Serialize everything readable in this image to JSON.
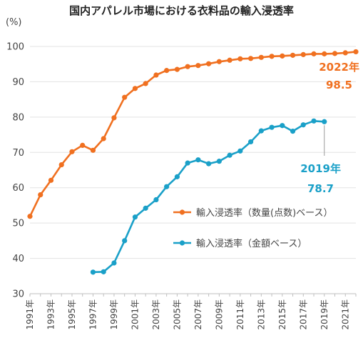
{
  "chart_data": {
    "type": "line",
    "title": "国内アパレル市場における衣料品の輸入浸透率",
    "ylabel": "(%)",
    "xlabel": "",
    "ylim": [
      30,
      100
    ],
    "yticks": [
      30,
      40,
      50,
      60,
      70,
      80,
      90,
      100
    ],
    "xlim": [
      1991,
      2022
    ],
    "xtick_labels": [
      "1991年",
      "1993年",
      "1995年",
      "1997年",
      "1999年",
      "2001年",
      "2003年",
      "2005年",
      "2007年",
      "2009年",
      "2011年",
      "2013年",
      "2015年",
      "2017年",
      "2019年",
      "2021年"
    ],
    "grid": "horizontal",
    "legend_position": "center-right",
    "series": [
      {
        "name": "輸入浸透率（数量(点数)ベース）",
        "color": "#F07020",
        "points": [
          [
            1991,
            51.9
          ],
          [
            1992,
            58.0
          ],
          [
            1993,
            62.1
          ],
          [
            1994,
            66.5
          ],
          [
            1995,
            70.2
          ],
          [
            1996,
            72.0
          ],
          [
            1997,
            70.6
          ],
          [
            1998,
            73.9
          ],
          [
            1999,
            79.8
          ],
          [
            2000,
            85.6
          ],
          [
            2001,
            88.1
          ],
          [
            2002,
            89.5
          ],
          [
            2003,
            91.9
          ],
          [
            2004,
            93.2
          ],
          [
            2005,
            93.5
          ],
          [
            2006,
            94.3
          ],
          [
            2007,
            94.6
          ],
          [
            2008,
            95.1
          ],
          [
            2009,
            95.7
          ],
          [
            2010,
            96.1
          ],
          [
            2011,
            96.5
          ],
          [
            2012,
            96.6
          ],
          [
            2013,
            96.9
          ],
          [
            2014,
            97.2
          ],
          [
            2015,
            97.3
          ],
          [
            2016,
            97.5
          ],
          [
            2017,
            97.7
          ],
          [
            2018,
            97.9
          ],
          [
            2019,
            97.9
          ],
          [
            2020,
            98.0
          ],
          [
            2021,
            98.2
          ],
          [
            2022,
            98.5
          ]
        ]
      },
      {
        "name": "輸入浸透率（金額ベース）",
        "color": "#1AA0C8",
        "points": [
          [
            1997,
            36.1
          ],
          [
            1998,
            36.2
          ],
          [
            1999,
            38.7
          ],
          [
            2000,
            45.0
          ],
          [
            2001,
            51.7
          ],
          [
            2002,
            54.2
          ],
          [
            2003,
            56.6
          ],
          [
            2004,
            60.3
          ],
          [
            2005,
            63.1
          ],
          [
            2006,
            67.0
          ],
          [
            2007,
            67.9
          ],
          [
            2008,
            66.8
          ],
          [
            2009,
            67.5
          ],
          [
            2010,
            69.2
          ],
          [
            2011,
            70.4
          ],
          [
            2012,
            73.0
          ],
          [
            2013,
            76.1
          ],
          [
            2014,
            77.1
          ],
          [
            2015,
            77.6
          ],
          [
            2016,
            76.0
          ],
          [
            2017,
            77.8
          ],
          [
            2018,
            78.9
          ],
          [
            2019,
            78.7
          ]
        ]
      }
    ],
    "annotations": [
      {
        "year_label": "2022年",
        "value_label": "98.5",
        "series": 0
      },
      {
        "year_label": "2019年",
        "value_label": "78.7",
        "series": 1
      }
    ]
  }
}
